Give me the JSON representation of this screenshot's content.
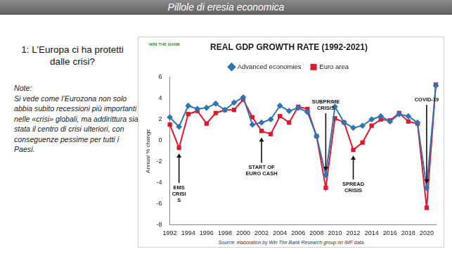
{
  "slide": {
    "header": "Pillole di eresia economica",
    "heading": "1: L’Europa ci ha protetti dalle crisi?",
    "note_title": "Note:",
    "note": "Si vede come l’Eurozona non solo abbia subito recessioni più importanti nelle «crisi» globali, ma addirittura sia stata il centro di crisi ulteriori, con conseguenze pessime per tutti i Paesi."
  },
  "chart_data": {
    "type": "line",
    "title": "REAL GDP GROWTH RATE (1992-2021)",
    "logo": "WIN THE BANK",
    "y_label": "Annual % change",
    "source": "Source: elaboration by Win The Bank Research group on IMF data",
    "categories": [
      "1992",
      null,
      "1994",
      null,
      "1996",
      null,
      "1998",
      null,
      "2000",
      null,
      "2002",
      null,
      "2004",
      null,
      "2006",
      null,
      "2008",
      null,
      "2010",
      null,
      "2012",
      null,
      "2014",
      null,
      "2016",
      null,
      "2018",
      null,
      "2020",
      null
    ],
    "series": [
      {
        "name": "Advanced economies",
        "color": "#2e75b6",
        "marker": "diamond",
        "line_style": "solid",
        "values": [
          2.2,
          1.3,
          3.3,
          3.0,
          3.1,
          3.5,
          2.9,
          3.6,
          4.1,
          1.5,
          1.7,
          2.0,
          3.3,
          2.8,
          3.1,
          2.7,
          0.4,
          -3.3,
          3.2,
          1.7,
          1.2,
          1.4,
          2.0,
          2.3,
          1.8,
          2.5,
          2.3,
          1.7,
          -4.5,
          5.2
        ]
      },
      {
        "name": "Euro area",
        "color": "#e0182d",
        "marker": "square",
        "line_style": "solid",
        "values": [
          1.5,
          -0.7,
          2.5,
          2.8,
          1.6,
          2.6,
          2.9,
          2.9,
          3.9,
          2.2,
          0.9,
          0.6,
          2.3,
          1.7,
          3.2,
          3.0,
          0.4,
          -4.5,
          2.1,
          1.7,
          -0.9,
          -0.2,
          1.4,
          2.0,
          1.9,
          2.6,
          1.8,
          1.6,
          -6.4,
          5.3
        ]
      }
    ],
    "ylim": [
      -8,
      6
    ],
    "yticks": [
      -8,
      -6,
      -4,
      -2,
      0,
      2,
      4,
      6
    ],
    "grid": false,
    "legend": "top",
    "annotations": [
      {
        "lines": [
          "EMS",
          "CRISI",
          "S"
        ]
      },
      {
        "lines": [
          "START OF",
          "EURO CASH"
        ]
      },
      {
        "lines": [
          "SUBPRIME",
          "CRISIS"
        ]
      },
      {
        "lines": [
          "SPREAD",
          "CRISIS"
        ]
      },
      {
        "lines": [
          "COVID-19"
        ]
      }
    ]
  }
}
